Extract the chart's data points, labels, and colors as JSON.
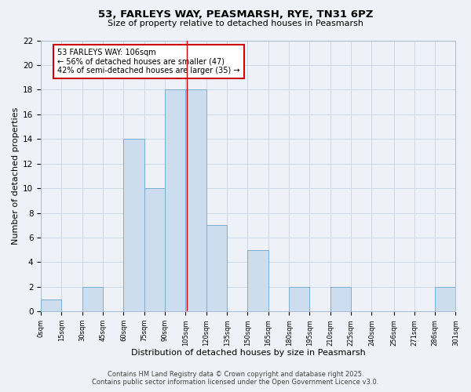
{
  "title": "53, FARLEYS WAY, PEASMARSH, RYE, TN31 6PZ",
  "subtitle": "Size of property relative to detached houses in Peasmarsh",
  "xlabel": "Distribution of detached houses by size in Peasmarsh",
  "ylabel": "Number of detached properties",
  "bin_edges": [
    0,
    15,
    30,
    45,
    60,
    75,
    90,
    105,
    120,
    135,
    150,
    165,
    180,
    195,
    210,
    225,
    240,
    256,
    271,
    286,
    301
  ],
  "bin_counts": [
    1,
    0,
    2,
    0,
    14,
    10,
    18,
    18,
    7,
    0,
    5,
    0,
    2,
    0,
    2,
    0,
    0,
    0,
    0,
    2
  ],
  "bar_color": "#ccddf0",
  "bar_edge_color": "#7aadce",
  "vline_x": 106,
  "vline_color": "#cc0000",
  "annotation_text_line1": "53 FARLEYS WAY: 106sqm",
  "annotation_text_line2": "← 56% of detached houses are smaller (47)",
  "annotation_text_line3": "42% of semi-detached houses are larger (35) →",
  "annotation_box_color": "#ffffff",
  "annotation_border_color": "#cc0000",
  "ylim": [
    0,
    22
  ],
  "yticks": [
    0,
    2,
    4,
    6,
    8,
    10,
    12,
    14,
    16,
    18,
    20,
    22
  ],
  "tick_labels": [
    "0sqm",
    "15sqm",
    "30sqm",
    "45sqm",
    "60sqm",
    "75sqm",
    "90sqm",
    "105sqm",
    "120sqm",
    "135sqm",
    "150sqm",
    "165sqm",
    "180sqm",
    "195sqm",
    "210sqm",
    "225sqm",
    "240sqm",
    "256sqm",
    "271sqm",
    "286sqm",
    "301sqm"
  ],
  "grid_color": "#d0d8e8",
  "background_color": "#eef2f8",
  "footer_line1": "Contains HM Land Registry data © Crown copyright and database right 2025.",
  "footer_line2": "Contains public sector information licensed under the Open Government Licence v3.0."
}
